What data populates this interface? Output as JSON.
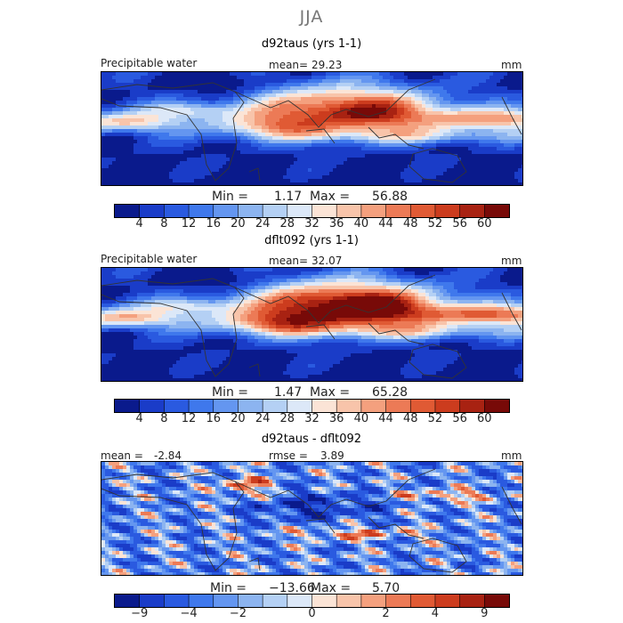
{
  "title": "JJA",
  "colors": {
    "scale": [
      "#0a1a8c",
      "#1a3cc8",
      "#2a5ae0",
      "#3f78ec",
      "#6496f0",
      "#8cb4f0",
      "#b4d0f4",
      "#dce8f8",
      "#fbe4d6",
      "#f8c4aa",
      "#f4a07e",
      "#ec7a56",
      "#e05a34",
      "#cc3c1e",
      "#a82212",
      "#780a08"
    ],
    "land": "#333333"
  },
  "chart_data": [
    {
      "type": "heatmap",
      "title": "d92taus (yrs 1-1)",
      "field_label": "Precipitable water",
      "mean_label": "mean=",
      "mean_value": "29.23",
      "units": "mm",
      "min_label": "Min =",
      "min_value": "1.17",
      "max_label": "Max =",
      "max_value": "56.88",
      "colorbar_ticks": [
        "4",
        "8",
        "12",
        "16",
        "20",
        "24",
        "28",
        "32",
        "36",
        "40",
        "44",
        "48",
        "52",
        "56",
        "60"
      ],
      "levels": [
        0,
        4,
        8,
        12,
        16,
        20,
        24,
        28,
        32,
        36,
        40,
        44,
        48,
        52,
        56,
        60,
        64
      ]
    },
    {
      "type": "heatmap",
      "title": "dflt092 (yrs 1-1)",
      "field_label": "Precipitable water",
      "mean_label": "mean=",
      "mean_value": "32.07",
      "units": "mm",
      "min_label": "Min =",
      "min_value": "1.47",
      "max_label": "Max =",
      "max_value": "65.28",
      "colorbar_ticks": [
        "4",
        "8",
        "12",
        "16",
        "20",
        "24",
        "28",
        "32",
        "36",
        "40",
        "44",
        "48",
        "52",
        "56",
        "60"
      ],
      "levels": [
        0,
        4,
        8,
        12,
        16,
        20,
        24,
        28,
        32,
        36,
        40,
        44,
        48,
        52,
        56,
        60,
        64
      ]
    },
    {
      "type": "heatmap",
      "title": "d92taus - dflt092",
      "mean_label": "mean =",
      "mean_value": "-2.84",
      "rmse_label": "rmse =",
      "rmse_value": "3.89",
      "units": "mm",
      "min_label": "Min =",
      "min_value": "−13.66",
      "max_label": "Max =",
      "max_value": "5.70",
      "colorbar_ticks": [
        "−9",
        "−4",
        "−2",
        "0",
        "2",
        "4",
        "9"
      ],
      "levels": [
        -12,
        -9,
        -6,
        -4,
        -3,
        -2,
        -1,
        -0.5,
        0,
        0.5,
        1,
        2,
        3,
        4,
        6,
        9,
        12
      ]
    }
  ]
}
